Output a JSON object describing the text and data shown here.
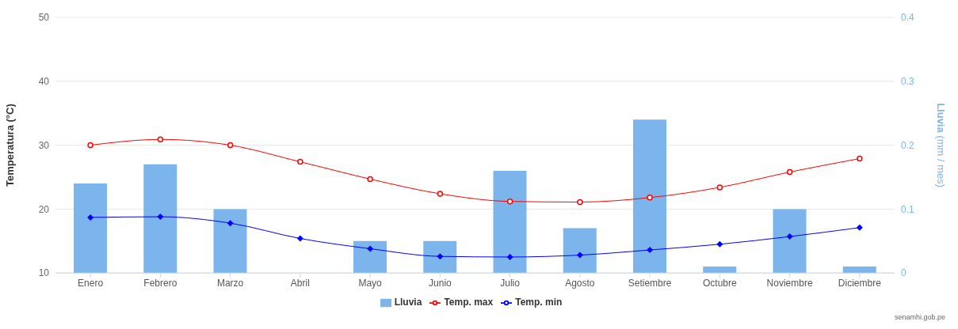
{
  "chart_data": {
    "type": "bar",
    "categories": [
      "Enero",
      "Febrero",
      "Marzo",
      "Abril",
      "Mayo",
      "Junio",
      "Julio",
      "Agosto",
      "Setiembre",
      "Octubre",
      "Noviembre",
      "Diciembre"
    ],
    "series": [
      {
        "name": "Lluvia",
        "axis": "y2",
        "color": "#7cb5ec",
        "values": [
          0.14,
          0.17,
          0.1,
          0,
          0.05,
          0.05,
          0.16,
          0.07,
          0.24,
          0.01,
          0.1,
          0.01
        ]
      },
      {
        "name": "Temp. max",
        "type": "line",
        "marker": "circle",
        "color": "#ff0000",
        "values": [
          30,
          30.9,
          30,
          27.4,
          24.7,
          22.4,
          21.2,
          21.1,
          21.8,
          23.4,
          25.8,
          27.9
        ]
      },
      {
        "name": "Temp. min",
        "type": "line",
        "marker": "diamond",
        "color": "#0000ff",
        "values": [
          18.7,
          18.8,
          17.8,
          15.4,
          13.8,
          12.6,
          12.5,
          12.8,
          13.6,
          14.5,
          15.7,
          17.1
        ]
      }
    ],
    "ylabel": "Temperatura (°C)",
    "y2label": "Lluvia (mm / mes)",
    "ylim": [
      10,
      50
    ],
    "yticks": [
      10,
      20,
      30,
      40,
      50
    ],
    "y2lim": [
      0,
      0.4
    ],
    "y2ticks": [
      0,
      0.1,
      0.2,
      0.3,
      0.4
    ],
    "grid": "y",
    "legend": "bottom",
    "annotations": [
      "senamhi.gob.pe"
    ]
  }
}
